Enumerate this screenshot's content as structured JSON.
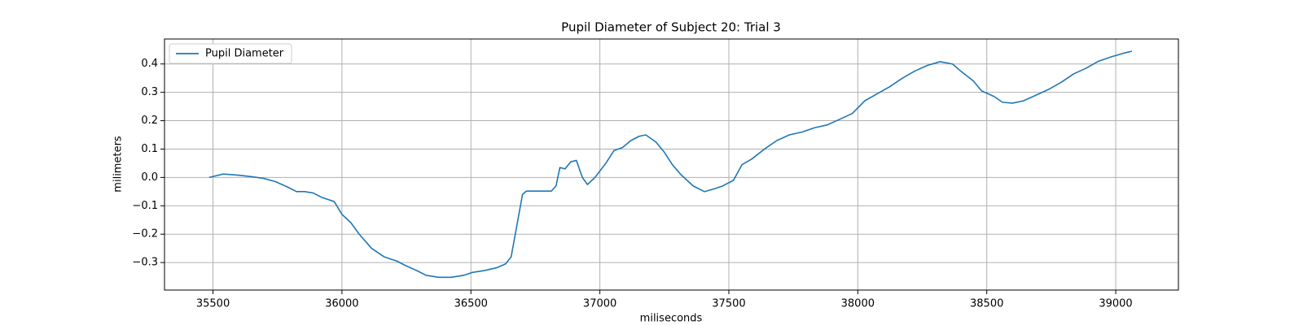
{
  "chart_data": {
    "type": "line",
    "title": "Pupil Diameter of Subject 20: Trial 3",
    "x_label": "miliseconds",
    "y_label": "milimeters",
    "legend": "upper left",
    "grid": true,
    "xlim": [
      35312,
      39243
    ],
    "ylim": [
      -0.397,
      0.488
    ],
    "xticks": [
      35500,
      36000,
      36500,
      37000,
      37500,
      38000,
      38500,
      39000
    ],
    "yticks": [
      {
        "value": -0.3,
        "label": "−0.3"
      },
      {
        "value": -0.2,
        "label": "−0.2"
      },
      {
        "value": -0.1,
        "label": "−0.1"
      },
      {
        "value": 0.0,
        "label": "0.0"
      },
      0.1,
      0.2,
      0.3,
      0.4
    ],
    "x": [
      35485,
      35540,
      35597,
      35646,
      35695,
      35743,
      35792,
      35824,
      35856,
      35889,
      35921,
      35970,
      36000,
      36035,
      36067,
      36115,
      36164,
      36213,
      36245,
      36294,
      36326,
      36375,
      36424,
      36472,
      36505,
      36553,
      36601,
      36634,
      36656,
      36676,
      36700,
      36715,
      36812,
      36830,
      36845,
      36865,
      36887,
      36909,
      36932,
      36952,
      36981,
      37023,
      37055,
      37087,
      37120,
      37152,
      37178,
      37217,
      37249,
      37281,
      37314,
      37362,
      37405,
      37444,
      37476,
      37518,
      37551,
      37589,
      37638,
      37686,
      37735,
      37784,
      37832,
      37881,
      37930,
      37978,
      38027,
      38075,
      38124,
      38173,
      38221,
      38270,
      38319,
      38367,
      38399,
      38448,
      38480,
      38529,
      38561,
      38600,
      38642,
      38691,
      38739,
      38788,
      38837,
      38885,
      38934,
      38982,
      39031,
      39063
    ],
    "series": [
      {
        "name": "Pupil Diameter",
        "color": "#1f77b4",
        "values": [
          0.0,
          0.012,
          0.008,
          0.003,
          -0.003,
          -0.015,
          -0.035,
          -0.05,
          -0.05,
          -0.055,
          -0.07,
          -0.085,
          -0.13,
          -0.16,
          -0.2,
          -0.25,
          -0.28,
          -0.295,
          -0.31,
          -0.33,
          -0.345,
          -0.352,
          -0.352,
          -0.345,
          -0.335,
          -0.328,
          -0.318,
          -0.305,
          -0.28,
          -0.18,
          -0.06,
          -0.048,
          -0.048,
          -0.03,
          0.035,
          0.03,
          0.055,
          0.06,
          0.0,
          -0.025,
          0.0,
          0.05,
          0.095,
          0.105,
          0.13,
          0.145,
          0.15,
          0.125,
          0.09,
          0.045,
          0.01,
          -0.03,
          -0.05,
          -0.04,
          -0.03,
          -0.01,
          0.045,
          0.065,
          0.1,
          0.13,
          0.15,
          0.16,
          0.175,
          0.185,
          0.205,
          0.225,
          0.27,
          0.295,
          0.32,
          0.35,
          0.375,
          0.395,
          0.408,
          0.4,
          0.375,
          0.34,
          0.305,
          0.285,
          0.265,
          0.262,
          0.27,
          0.29,
          0.31,
          0.335,
          0.365,
          0.385,
          0.41,
          0.425,
          0.438,
          0.445
        ]
      }
    ]
  }
}
